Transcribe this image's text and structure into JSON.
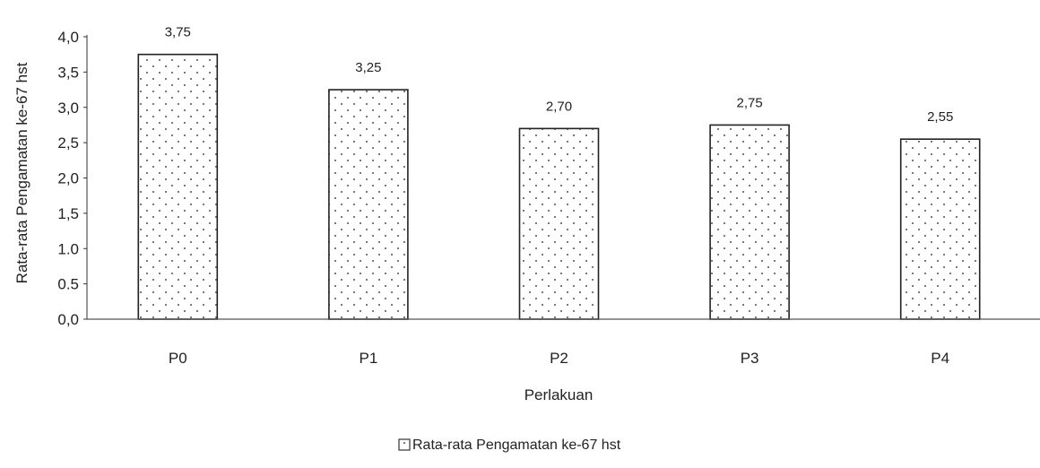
{
  "chart_data": {
    "type": "bar",
    "title": "",
    "xlabel": "Perlakuan",
    "ylabel": "Rata-rata Pengamatan ke-67 hst",
    "categories": [
      "P0",
      "P1",
      "P2",
      "P3",
      "P4"
    ],
    "series": [
      {
        "name": "Rata-rata Pengamatan ke-67 hst",
        "values": [
          3.75,
          3.25,
          2.7,
          2.75,
          2.55
        ],
        "value_labels": [
          "3,75",
          "3,25",
          "2,70",
          "2,75",
          "2,55"
        ],
        "color": "#ffffff",
        "pattern": "dots"
      }
    ],
    "yticks": [
      0,
      0.5,
      1.0,
      1.5,
      2.0,
      2.5,
      3.0,
      3.5,
      4.0
    ],
    "ytick_labels": [
      "0,0",
      "0.5",
      "1.0",
      "1,5",
      "2,0",
      "2,5",
      "3,0",
      "3,5",
      "4,0"
    ],
    "ylim": [
      0,
      4.0
    ],
    "grid": false,
    "legend_position": "bottom-center"
  }
}
